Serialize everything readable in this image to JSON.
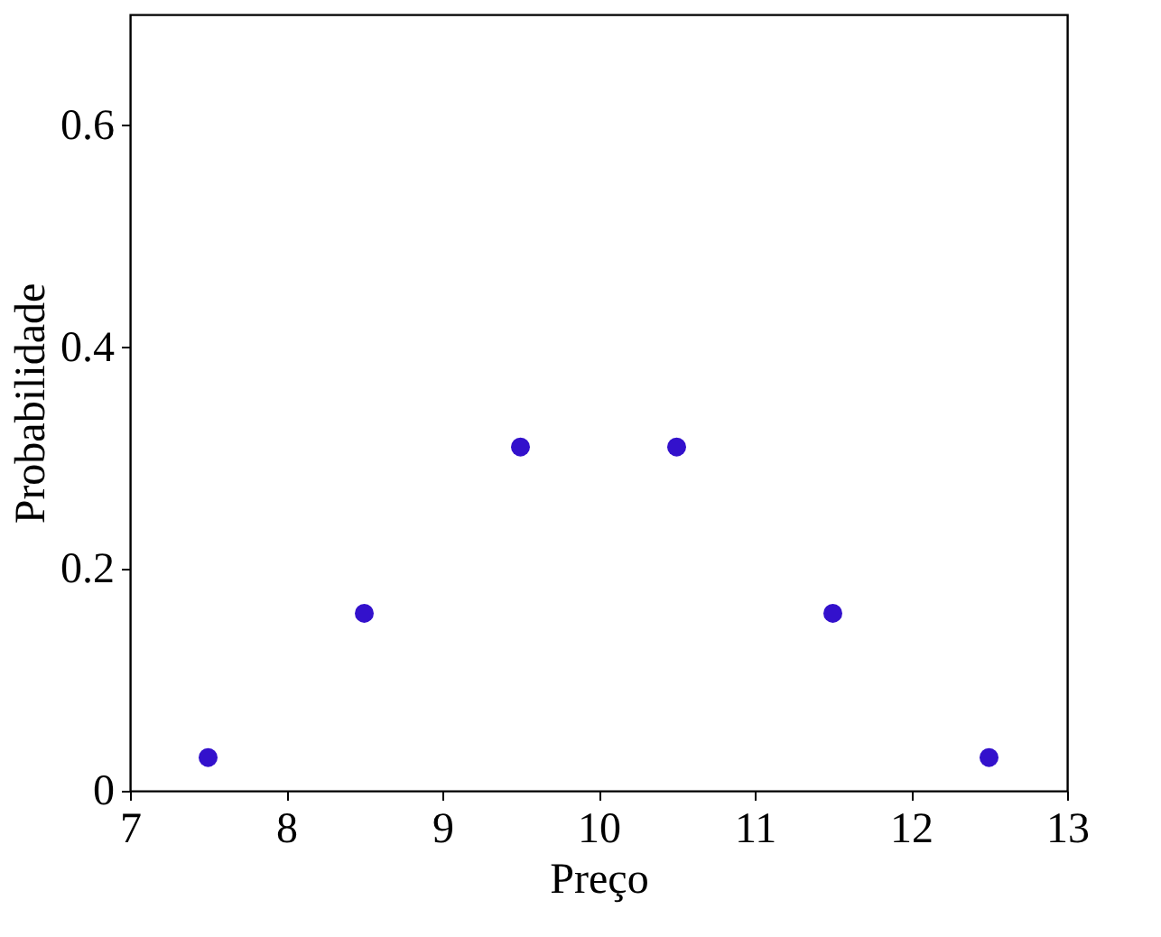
{
  "chart_data": {
    "type": "scatter",
    "xlabel": "Preço",
    "ylabel": "Probabilidade",
    "x": [
      7.5,
      8.5,
      9.5,
      10.5,
      11.5,
      12.5
    ],
    "series": [
      {
        "color": "#3311cc",
        "values": [
          0.03,
          0.16,
          0.31,
          0.31,
          0.16,
          0.03
        ]
      }
    ],
    "xlim": [
      7,
      13
    ],
    "xticks": [
      7,
      8,
      9,
      10,
      11,
      12,
      13
    ],
    "ylim": [
      0,
      0.7
    ],
    "yticks": [
      0,
      0.2,
      0.4,
      0.6
    ],
    "marker": "circle",
    "grid": false,
    "legend": false
  }
}
